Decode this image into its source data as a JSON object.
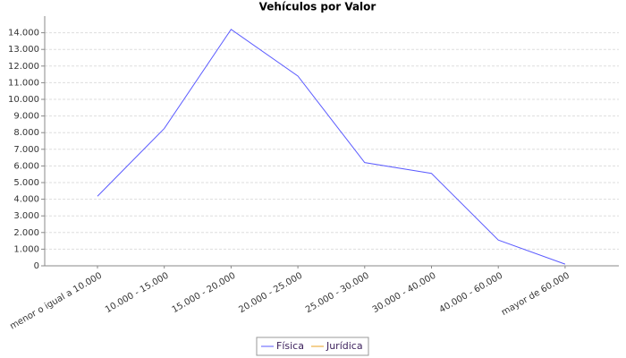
{
  "chart_data": {
    "type": "line",
    "title": "Vehículos por Valor",
    "categories": [
      "menor o igual a 10.000",
      "10.000 - 15.000",
      "15.000 - 20.000",
      "20.000 - 25.000",
      "25.000 - 30.000",
      "30.000 - 40.000",
      "40.000 - 60.000",
      "mayor de 60.000"
    ],
    "series": [
      {
        "name": "Física",
        "color": "#5b5bff",
        "values": [
          4180,
          8250,
          14200,
          11400,
          6200,
          5550,
          1550,
          100
        ]
      },
      {
        "name": "Jurídica",
        "color": "#e8a020",
        "values": [
          null,
          null,
          null,
          null,
          null,
          null,
          null,
          null
        ]
      }
    ],
    "ylim": [
      0,
      15000
    ],
    "yticks": [
      0,
      {
        "value": 1000,
        "label": "1.000"
      },
      {
        "value": 2000,
        "label": "2.000"
      },
      {
        "value": 3000,
        "label": "3.000"
      },
      {
        "value": 4000,
        "label": "4.000"
      },
      {
        "value": 5000,
        "label": "5.000"
      },
      {
        "value": 6000,
        "label": "6.000"
      },
      {
        "value": 7000,
        "label": "7.000"
      },
      {
        "value": 8000,
        "label": "8.000"
      },
      {
        "value": 9000,
        "label": "9.000"
      },
      {
        "value": 10000,
        "label": "10.000"
      },
      {
        "value": 11000,
        "label": "11.000"
      },
      {
        "value": 12000,
        "label": "12.000"
      },
      {
        "value": 13000,
        "label": "13.000"
      },
      {
        "value": 14000,
        "label": "14.000"
      }
    ],
    "grid": true
  }
}
